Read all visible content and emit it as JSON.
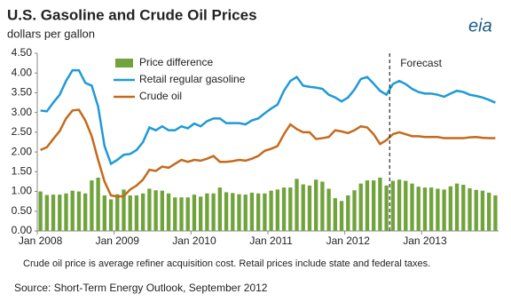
{
  "chart_data": {
    "type": "bar_line",
    "title": "U.S. Gasoline and Crude Oil Prices",
    "subtitle": "dollars per gallon",
    "logo": "eia",
    "footnote": "Crude oil price is average refiner acquisition cost.  Retail prices include state and federal taxes.",
    "source": "Source: Short-Term Energy Outlook, September 2012",
    "forecast": {
      "label": "Forecast",
      "after_index": 54
    },
    "categories": [
      "Jan 2008",
      null,
      null,
      null,
      null,
      null,
      null,
      null,
      null,
      null,
      null,
      null,
      "Jan 2009",
      null,
      null,
      null,
      null,
      null,
      null,
      null,
      null,
      null,
      null,
      null,
      "Jan 2010",
      null,
      null,
      null,
      null,
      null,
      null,
      null,
      null,
      null,
      null,
      null,
      "Jan 2011",
      null,
      null,
      null,
      null,
      null,
      null,
      null,
      null,
      null,
      null,
      null,
      "Jan 2012",
      null,
      null,
      null,
      null,
      null,
      null,
      null,
      null,
      null,
      null,
      null,
      "Jan 2013",
      null,
      null,
      null,
      null,
      null,
      null,
      null,
      null,
      null,
      null,
      null
    ],
    "series": [
      {
        "name": "Price difference",
        "kind": "bar",
        "color": "#70a33c",
        "values": [
          1.0,
          0.91,
          0.92,
          0.92,
          0.95,
          1.02,
          1.0,
          0.95,
          1.28,
          1.35,
          0.9,
          0.8,
          0.93,
          1.05,
          0.9,
          0.9,
          0.95,
          1.07,
          1.03,
          1.02,
          0.95,
          0.85,
          0.85,
          0.85,
          0.92,
          0.87,
          0.95,
          0.95,
          1.1,
          0.98,
          0.96,
          0.93,
          0.92,
          0.97,
          0.95,
          0.95,
          1.02,
          1.05,
          1.1,
          1.1,
          1.32,
          1.18,
          1.15,
          1.3,
          1.25,
          1.07,
          0.83,
          0.76,
          0.9,
          1.03,
          1.2,
          1.28,
          1.28,
          1.35,
          1.15,
          1.27,
          1.3,
          1.27,
          1.2,
          1.12,
          1.1,
          1.1,
          1.07,
          1.05,
          1.13,
          1.2,
          1.17,
          1.08,
          1.04,
          1.02,
          0.97,
          0.9
        ]
      },
      {
        "name": "Retail regular gasoline",
        "kind": "line",
        "color": "#1f9ad6",
        "values": [
          3.05,
          3.03,
          3.25,
          3.45,
          3.8,
          4.07,
          4.07,
          3.75,
          3.68,
          3.15,
          2.15,
          1.7,
          1.8,
          1.93,
          1.95,
          2.05,
          2.25,
          2.62,
          2.55,
          2.65,
          2.55,
          2.55,
          2.65,
          2.6,
          2.72,
          2.65,
          2.78,
          2.85,
          2.85,
          2.73,
          2.73,
          2.73,
          2.7,
          2.8,
          2.85,
          2.98,
          3.1,
          3.2,
          3.55,
          3.8,
          3.9,
          3.68,
          3.65,
          3.63,
          3.6,
          3.45,
          3.38,
          3.28,
          3.38,
          3.58,
          3.85,
          3.9,
          3.73,
          3.55,
          3.45,
          3.72,
          3.8,
          3.72,
          3.6,
          3.52,
          3.48,
          3.48,
          3.45,
          3.4,
          3.48,
          3.55,
          3.52,
          3.45,
          3.42,
          3.38,
          3.32,
          3.25
        ]
      },
      {
        "name": "Crude oil",
        "kind": "line",
        "color": "#c46a1d",
        "values": [
          2.05,
          2.12,
          2.33,
          2.53,
          2.85,
          3.05,
          3.07,
          2.8,
          2.4,
          1.8,
          1.25,
          0.9,
          0.87,
          0.88,
          1.05,
          1.15,
          1.3,
          1.55,
          1.52,
          1.63,
          1.6,
          1.7,
          1.8,
          1.75,
          1.8,
          1.78,
          1.83,
          1.9,
          1.75,
          1.75,
          1.77,
          1.8,
          1.78,
          1.83,
          1.9,
          2.03,
          2.08,
          2.15,
          2.45,
          2.7,
          2.58,
          2.5,
          2.5,
          2.33,
          2.35,
          2.38,
          2.55,
          2.52,
          2.48,
          2.55,
          2.65,
          2.62,
          2.45,
          2.2,
          2.3,
          2.45,
          2.5,
          2.45,
          2.4,
          2.4,
          2.38,
          2.38,
          2.38,
          2.35,
          2.35,
          2.35,
          2.35,
          2.37,
          2.38,
          2.36,
          2.35,
          2.35
        ]
      }
    ],
    "ylim": [
      0,
      4.5
    ],
    "yticks": [
      {
        "value": 0,
        "label": "0.00"
      },
      {
        "value": 0.5,
        "label": "0.50"
      },
      {
        "value": 1,
        "label": "1.00"
      },
      {
        "value": 1.5,
        "label": "1.50"
      },
      {
        "value": 2,
        "label": "2.00"
      },
      {
        "value": 2.5,
        "label": "2.50"
      },
      {
        "value": 3,
        "label": "3.00"
      },
      {
        "value": 3.5,
        "label": "3.50"
      },
      {
        "value": 4,
        "label": "4.00"
      },
      {
        "value": 4.5,
        "label": "4.50"
      }
    ],
    "grid": false,
    "legend": "top-left"
  }
}
